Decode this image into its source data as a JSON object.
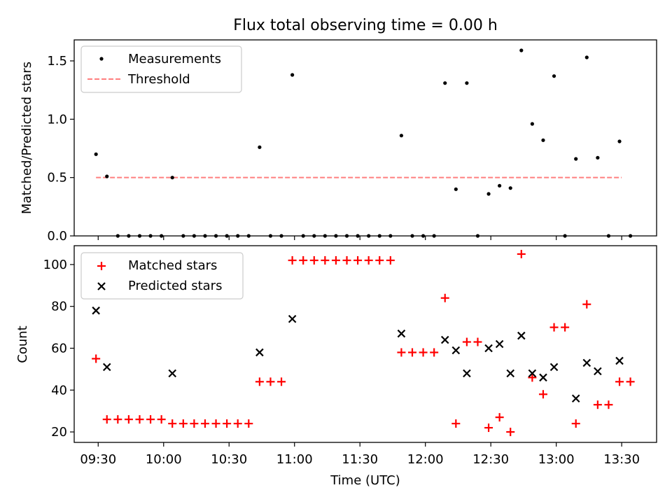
{
  "figure": {
    "title": "Flux total observing time = 0.00 h"
  },
  "chart_data": [
    {
      "type": "scatter",
      "title": "Flux total observing time = 0.00 h",
      "xlabel": "",
      "ylabel": "Matched/Predicted stars",
      "xlim": [
        "09:19",
        "13:46"
      ],
      "ylim": [
        0,
        1.68
      ],
      "yticks": [
        0.0,
        0.5,
        1.0,
        1.5
      ],
      "ytick_labels": [
        "0.0",
        "0.5",
        "1.0",
        "1.5"
      ],
      "xticks": [
        "09:30",
        "10:00",
        "10:30",
        "11:00",
        "11:30",
        "12:00",
        "12:30",
        "13:00",
        "13:30"
      ],
      "grid": false,
      "legend": {
        "placement": "upper left",
        "entries": [
          {
            "label": "Measurements",
            "marker": "dot",
            "color": "#000000"
          },
          {
            "label": "Threshold",
            "marker": "dashed-line",
            "color": "#ff7f7f"
          }
        ]
      },
      "threshold": {
        "value": 0.5,
        "x_start": "09:29",
        "x_end": "13:30",
        "color": "#ff7f7f"
      },
      "series": [
        {
          "name": "Measurements",
          "color": "#000000",
          "points": [
            [
              "09:29",
              0.7
            ],
            [
              "09:34",
              0.51
            ],
            [
              "09:39",
              0.0
            ],
            [
              "09:44",
              0.0
            ],
            [
              "09:49",
              0.0
            ],
            [
              "09:54",
              0.0
            ],
            [
              "09:59",
              0.0
            ],
            [
              "10:04",
              0.5
            ],
            [
              "10:09",
              0.0
            ],
            [
              "10:14",
              0.0
            ],
            [
              "10:19",
              0.0
            ],
            [
              "10:24",
              0.0
            ],
            [
              "10:29",
              0.0
            ],
            [
              "10:34",
              0.0
            ],
            [
              "10:39",
              0.0
            ],
            [
              "10:44",
              0.76
            ],
            [
              "10:49",
              0.0
            ],
            [
              "10:54",
              0.0
            ],
            [
              "10:59",
              1.38
            ],
            [
              "11:04",
              0.0
            ],
            [
              "11:09",
              0.0
            ],
            [
              "11:14",
              0.0
            ],
            [
              "11:19",
              0.0
            ],
            [
              "11:24",
              0.0
            ],
            [
              "11:29",
              0.0
            ],
            [
              "11:34",
              0.0
            ],
            [
              "11:39",
              0.0
            ],
            [
              "11:44",
              0.0
            ],
            [
              "11:49",
              0.86
            ],
            [
              "11:54",
              0.0
            ],
            [
              "11:59",
              0.0
            ],
            [
              "12:04",
              0.0
            ],
            [
              "12:09",
              1.31
            ],
            [
              "12:14",
              0.4
            ],
            [
              "12:19",
              1.31
            ],
            [
              "12:24",
              0.0
            ],
            [
              "12:29",
              0.36
            ],
            [
              "12:34",
              0.43
            ],
            [
              "12:39",
              0.41
            ],
            [
              "12:44",
              1.59
            ],
            [
              "12:49",
              0.96
            ],
            [
              "12:54",
              0.82
            ],
            [
              "12:59",
              1.37
            ],
            [
              "13:04",
              0.0
            ],
            [
              "13:09",
              0.66
            ],
            [
              "13:14",
              1.53
            ],
            [
              "13:19",
              0.67
            ],
            [
              "13:24",
              0.0
            ],
            [
              "13:29",
              0.81
            ],
            [
              "13:34",
              0.0
            ]
          ]
        }
      ]
    },
    {
      "type": "scatter",
      "title": "",
      "xlabel": "Time (UTC)",
      "ylabel": "Count",
      "xlim": [
        "09:19",
        "13:46"
      ],
      "ylim": [
        15,
        109
      ],
      "yticks": [
        20,
        40,
        60,
        80,
        100
      ],
      "ytick_labels": [
        "20",
        "40",
        "60",
        "80",
        "100"
      ],
      "xticks": [
        "09:30",
        "10:00",
        "10:30",
        "11:00",
        "11:30",
        "12:00",
        "12:30",
        "13:00",
        "13:30"
      ],
      "xtick_labels": [
        "09:30",
        "10:00",
        "10:30",
        "11:00",
        "11:30",
        "12:00",
        "12:30",
        "13:00",
        "13:30"
      ],
      "grid": false,
      "legend": {
        "placement": "upper left",
        "entries": [
          {
            "label": "Matched stars",
            "marker": "plus",
            "color": "#ff0000"
          },
          {
            "label": "Predicted stars",
            "marker": "x",
            "color": "#000000"
          }
        ]
      },
      "series": [
        {
          "name": "Matched stars",
          "marker": "plus",
          "color": "#ff0000",
          "points": [
            [
              "09:29",
              55
            ],
            [
              "09:34",
              26
            ],
            [
              "09:39",
              26
            ],
            [
              "09:44",
              26
            ],
            [
              "09:49",
              26
            ],
            [
              "09:54",
              26
            ],
            [
              "09:59",
              26
            ],
            [
              "10:04",
              24
            ],
            [
              "10:09",
              24
            ],
            [
              "10:14",
              24
            ],
            [
              "10:19",
              24
            ],
            [
              "10:24",
              24
            ],
            [
              "10:29",
              24
            ],
            [
              "10:34",
              24
            ],
            [
              "10:39",
              24
            ],
            [
              "10:44",
              44
            ],
            [
              "10:49",
              44
            ],
            [
              "10:54",
              44
            ],
            [
              "10:59",
              102
            ],
            [
              "11:04",
              102
            ],
            [
              "11:09",
              102
            ],
            [
              "11:14",
              102
            ],
            [
              "11:19",
              102
            ],
            [
              "11:24",
              102
            ],
            [
              "11:29",
              102
            ],
            [
              "11:34",
              102
            ],
            [
              "11:39",
              102
            ],
            [
              "11:44",
              102
            ],
            [
              "11:49",
              58
            ],
            [
              "11:54",
              58
            ],
            [
              "11:59",
              58
            ],
            [
              "12:04",
              58
            ],
            [
              "12:09",
              84
            ],
            [
              "12:14",
              24
            ],
            [
              "12:19",
              63
            ],
            [
              "12:24",
              63
            ],
            [
              "12:29",
              22
            ],
            [
              "12:34",
              27
            ],
            [
              "12:39",
              20
            ],
            [
              "12:44",
              105
            ],
            [
              "12:49",
              46
            ],
            [
              "12:54",
              38
            ],
            [
              "12:59",
              70
            ],
            [
              "13:04",
              70
            ],
            [
              "13:09",
              24
            ],
            [
              "13:14",
              81
            ],
            [
              "13:19",
              33
            ],
            [
              "13:24",
              33
            ],
            [
              "13:29",
              44
            ],
            [
              "13:34",
              44
            ]
          ]
        },
        {
          "name": "Predicted stars",
          "marker": "x",
          "color": "#000000",
          "points": [
            [
              "09:29",
              78
            ],
            [
              "09:34",
              51
            ],
            [
              "10:04",
              48
            ],
            [
              "10:44",
              58
            ],
            [
              "10:59",
              74
            ],
            [
              "11:49",
              67
            ],
            [
              "12:09",
              64
            ],
            [
              "12:14",
              59
            ],
            [
              "12:19",
              48
            ],
            [
              "12:29",
              60
            ],
            [
              "12:34",
              62
            ],
            [
              "12:39",
              48
            ],
            [
              "12:44",
              66
            ],
            [
              "12:49",
              48
            ],
            [
              "12:54",
              46
            ],
            [
              "12:59",
              51
            ],
            [
              "13:09",
              36
            ],
            [
              "13:14",
              53
            ],
            [
              "13:19",
              49
            ],
            [
              "13:29",
              54
            ]
          ]
        }
      ]
    }
  ]
}
